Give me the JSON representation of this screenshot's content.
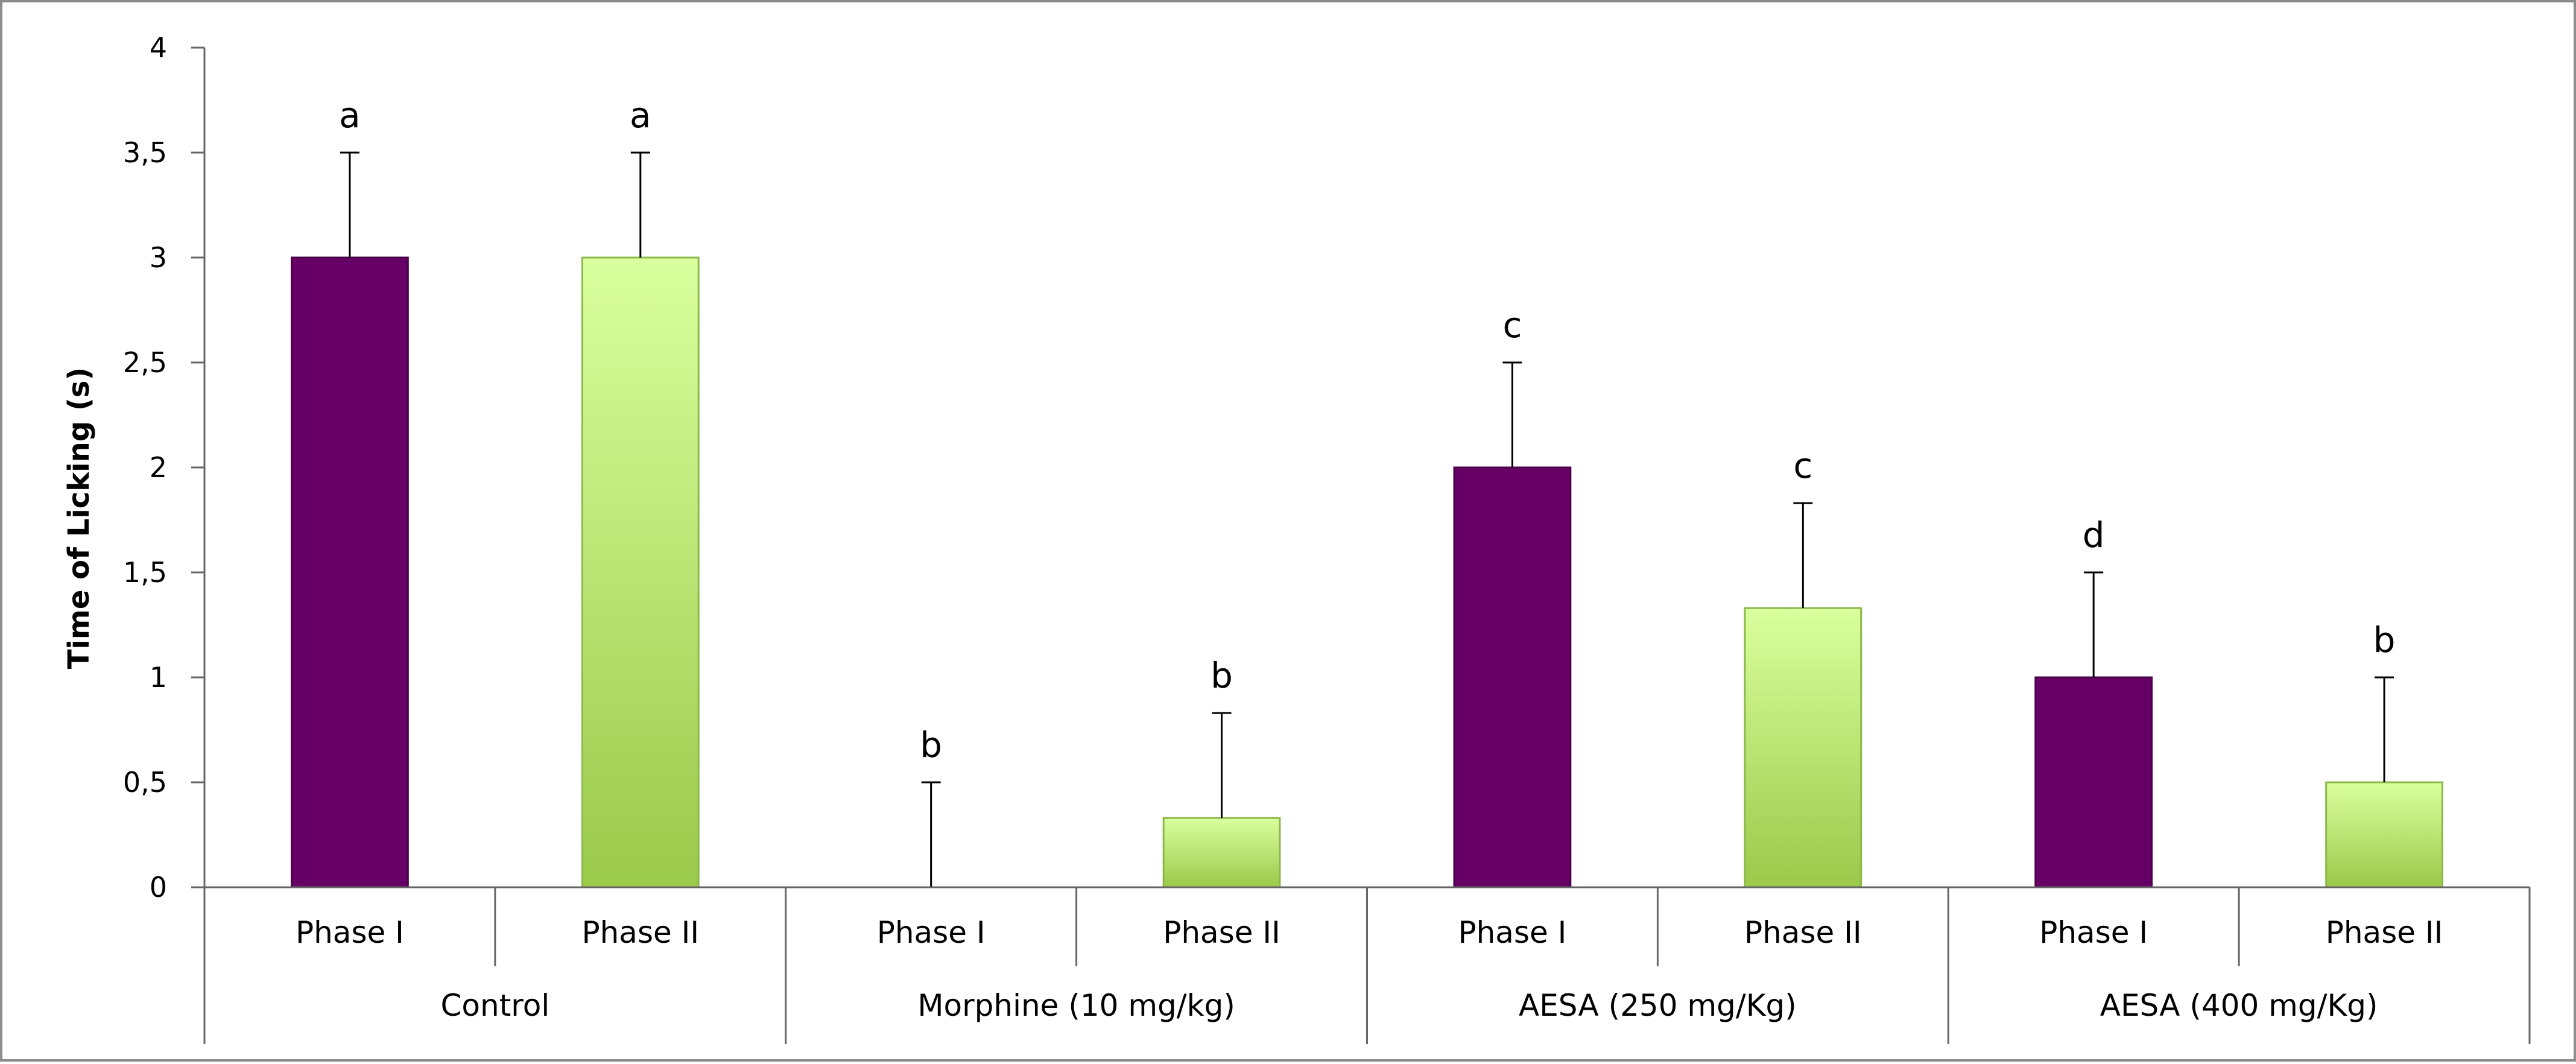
{
  "chart_data": {
    "type": "bar",
    "title": "",
    "xlabel": "",
    "ylabel": "Time of Licking (s)",
    "ylim": [
      0,
      4
    ],
    "yticks": [
      "0",
      "0,5",
      "1",
      "1,5",
      "2",
      "2,5",
      "3",
      "3,5",
      "4"
    ],
    "grid": false,
    "groups": [
      {
        "label": "Control",
        "bars": [
          {
            "label": "Phase I",
            "phase": "I",
            "value": 3.0,
            "error": 0.5,
            "letter": "a"
          },
          {
            "label": "Phase II",
            "phase": "II",
            "value": 3.0,
            "error": 0.5,
            "letter": "a"
          }
        ]
      },
      {
        "label": "Morphine (10 mg/kg)",
        "bars": [
          {
            "label": "Phase I",
            "phase": "I",
            "value": 0.0,
            "error": 0.5,
            "letter": "b"
          },
          {
            "label": "Phase II",
            "phase": "II",
            "value": 0.33,
            "error": 0.5,
            "letter": "b"
          }
        ]
      },
      {
        "label": "AESA (250 mg/Kg)",
        "bars": [
          {
            "label": "Phase I",
            "phase": "I",
            "value": 2.0,
            "error": 0.5,
            "letter": "c"
          },
          {
            "label": "Phase II",
            "phase": "II",
            "value": 1.33,
            "error": 0.5,
            "letter": "c"
          }
        ]
      },
      {
        "label": "AESA (400 mg/Kg)",
        "bars": [
          {
            "label": "Phase I",
            "phase": "I",
            "value": 1.0,
            "error": 0.5,
            "letter": "d"
          },
          {
            "label": "Phase II",
            "phase": "II",
            "value": 0.5,
            "error": 0.5,
            "letter": "b"
          }
        ]
      }
    ],
    "colors": {
      "phase_I": "#660066",
      "phase_II_top": "#daff9e",
      "phase_II_bottom": "#9bc94a",
      "phase_II_border": "#8cb84a",
      "axis": "#666666",
      "error_bar": "#000000"
    }
  }
}
